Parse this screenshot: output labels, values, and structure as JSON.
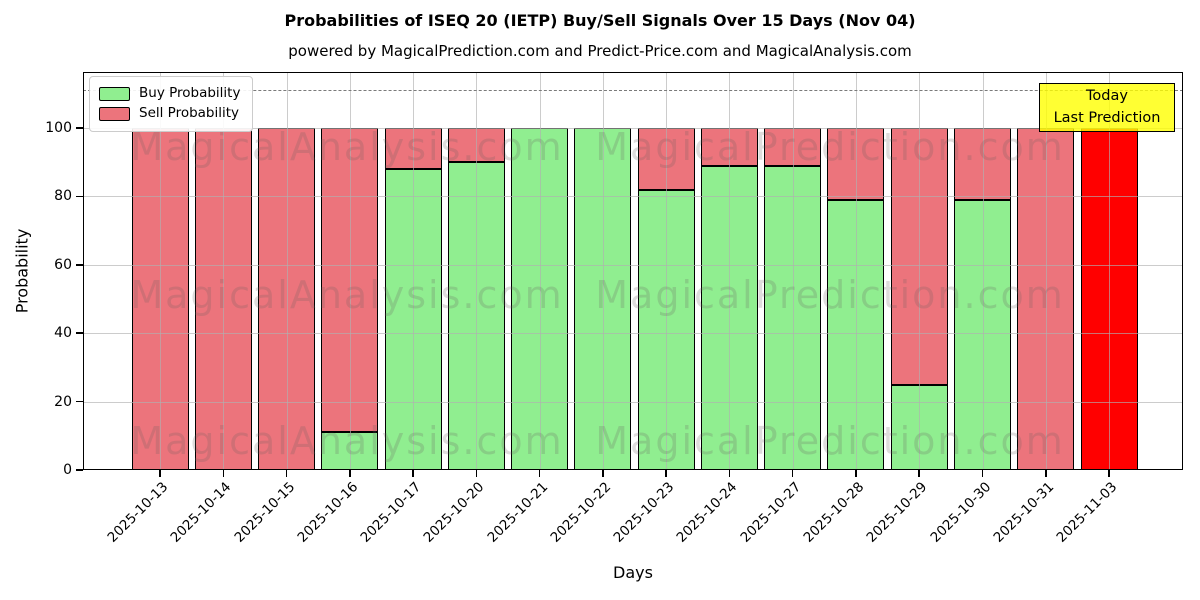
{
  "title": "Probabilities of ISEQ 20 (IETP) Buy/Sell Signals Over 15 Days (Nov 04)",
  "subtitle": "powered by MagicalPrediction.com and Predict-Price.com and MagicalAnalysis.com",
  "legend": [
    {
      "label": "Buy Probability",
      "color": "#90ee90"
    },
    {
      "label": "Sell Probability",
      "color": "#ec747c"
    }
  ],
  "annotation": {
    "line1": "Today",
    "line2": "Last Prediction",
    "bg_color": "#ffff00"
  },
  "watermark_texts": [
    "MagicalAnalysis.com",
    "MagicalPrediction.com"
  ],
  "colors": {
    "buy": "#90ee90",
    "sell": "#ec747c",
    "today_bar": "#ff0000",
    "bar_edge": "#000000",
    "grid": "#b0b0b0"
  },
  "chart_data": {
    "type": "bar",
    "stacked": true,
    "title": "Probabilities of ISEQ 20 (IETP) Buy/Sell Signals Over 15 Days (Nov 04)",
    "xlabel": "Days",
    "ylabel": "Probability",
    "ylim": [
      0,
      116.4
    ],
    "yticks": [
      0,
      20,
      40,
      60,
      80,
      100
    ],
    "dashed_line_y": 111,
    "grid": true,
    "legend_position": "upper left",
    "categories": [
      "2025-10-13",
      "2025-10-14",
      "2025-10-15",
      "2025-10-16",
      "2025-10-17",
      "2025-10-20",
      "2025-10-21",
      "2025-10-22",
      "2025-10-23",
      "2025-10-24",
      "2025-10-27",
      "2025-10-28",
      "2025-10-29",
      "2025-10-30",
      "2025-10-31",
      "2025-11-03"
    ],
    "series": [
      {
        "name": "Buy Probability",
        "color": "#90ee90",
        "values": [
          0,
          0,
          0,
          11,
          88,
          90,
          100,
          100,
          82,
          89,
          89,
          79,
          25,
          79,
          0,
          0
        ]
      },
      {
        "name": "Sell Probability",
        "color": "#ec747c",
        "values": [
          100,
          100,
          100,
          89,
          12,
          10,
          0,
          0,
          18,
          11,
          11,
          21,
          75,
          21,
          100,
          100
        ]
      }
    ],
    "today_bar": {
      "index": 15,
      "category": "2025-11-03",
      "color": "#ff0000"
    }
  }
}
